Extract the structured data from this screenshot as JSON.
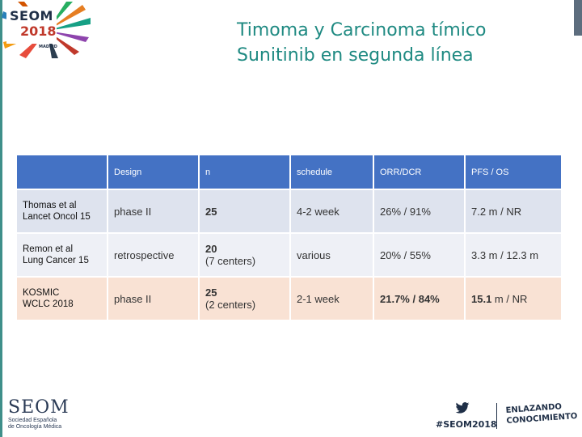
{
  "logo": {
    "line1": "SEOM",
    "line2": "2018",
    "city": "MADRID"
  },
  "title": {
    "line1": "Timoma y Carcinoma tímico",
    "line2": "Sunitinib en segunda línea"
  },
  "table": {
    "headers": [
      "",
      "Design",
      "n",
      "schedule",
      "ORR/DCR",
      "PFS / OS"
    ],
    "rows": [
      {
        "ref_line1": "Thomas et al",
        "ref_line2": "Lancet Oncol 15",
        "design": "phase II",
        "n_line1": "25",
        "n_line2": "",
        "schedule": "4-2 week",
        "orr": "26% / 91%",
        "pfs": "7.2 m / NR"
      },
      {
        "ref_line1": "Remon et al",
        "ref_line2": "Lung Cancer 15",
        "design": "retrospective",
        "n_line1": "20",
        "n_line2": "(7 centers)",
        "schedule": "various",
        "orr": "20% / 55%",
        "pfs": "3.3 m / 12.3 m"
      },
      {
        "ref_line1": "KOSMIC",
        "ref_line2": "WCLC 2018",
        "design": "phase II",
        "n_line1": "25",
        "n_line2": "(2 centers)",
        "schedule": "2-1 week",
        "orr_bold": "21.7%",
        "orr_rest": " / 84%",
        "pfs_bold": "15.1",
        "pfs_rest": " m / NR"
      }
    ]
  },
  "footer": {
    "seom": "SEOM",
    "seom_sub1": "Sociedad Española",
    "seom_sub2": "de Oncología Médica",
    "hashtag": "#SEOM2018",
    "slogan_line1": "ENLAZANDO",
    "slogan_line2": "CONOCIMIENTO"
  },
  "colors": {
    "title": "#1f8a82",
    "header": "#4472c4",
    "row1": "#dee3ee",
    "row2": "#eef0f6",
    "row3": "#f9e2d4"
  }
}
